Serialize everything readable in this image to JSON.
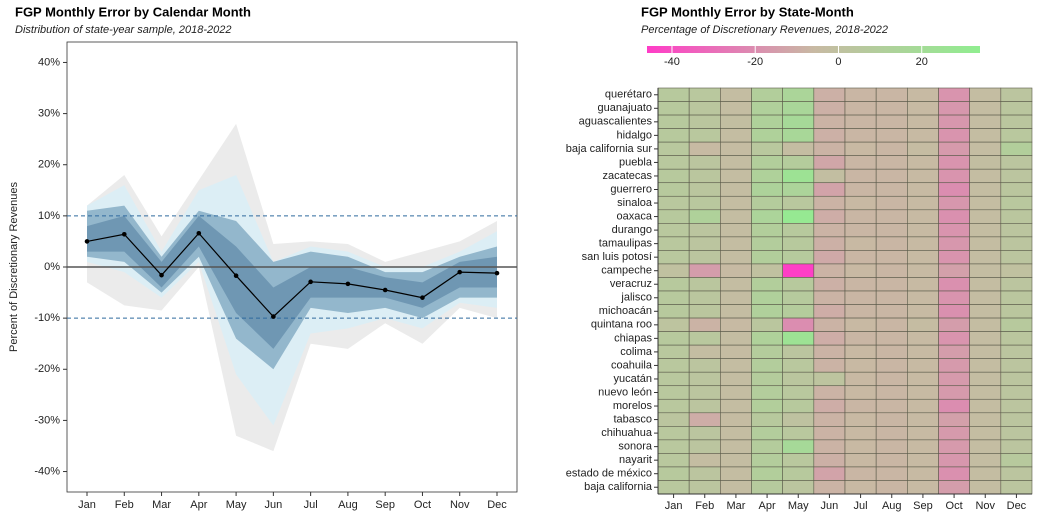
{
  "chart_data": [
    {
      "type": "line",
      "title": "FGP Monthly Error by Calendar Month",
      "subtitle": "Distribution of state-year sample, 2018-2022",
      "y_label": "Percent of Discretionary Revenues",
      "categories": [
        "Jan",
        "Feb",
        "Mar",
        "Apr",
        "May",
        "Jun",
        "Jul",
        "Aug",
        "Sep",
        "Oct",
        "Nov",
        "Dec"
      ],
      "series": [
        {
          "color": "#000000",
          "values": [
            5.0,
            6.4,
            -1.6,
            6.6,
            -1.7,
            -9.7,
            -2.9,
            -3.3,
            -4.5,
            -6.0,
            -1.0,
            -1.2
          ]
        }
      ],
      "bands": [
        {
          "color": "#ebebeb",
          "lower": [
            -3,
            -7.5,
            -8.5,
            0,
            -33,
            -36,
            -15,
            -16,
            -11,
            -15,
            -8,
            -10
          ],
          "upper": [
            12,
            18,
            6,
            17,
            28,
            4.5,
            5,
            4.5,
            1,
            3,
            5,
            9
          ]
        },
        {
          "color": "#dceef5",
          "lower": [
            1,
            -1,
            -6,
            1,
            -21,
            -31,
            -13,
            -12,
            -10,
            -12,
            -7,
            -8
          ],
          "upper": [
            12,
            16,
            3,
            15,
            18,
            1,
            4,
            3,
            0,
            0,
            3,
            7
          ]
        },
        {
          "color": "#93b7cc",
          "lower": [
            2,
            1,
            -5,
            2,
            -14,
            -20,
            -8,
            -9,
            -8,
            -10,
            -6,
            -6
          ],
          "upper": [
            11,
            12,
            2,
            11,
            9,
            1,
            3,
            2,
            -1,
            -1,
            2,
            4
          ]
        },
        {
          "color": "#6f97b3",
          "lower": [
            3,
            3,
            -4,
            4,
            -9,
            -16,
            -6,
            -6,
            -6,
            -8,
            -4,
            -4
          ],
          "upper": [
            8,
            10,
            1,
            10,
            4,
            -4,
            0,
            0,
            -2,
            -3,
            1,
            2
          ]
        }
      ],
      "reference_lines": [
        {
          "value": 10,
          "style": "dashed",
          "color": "#2f6a9e"
        },
        {
          "value": -10,
          "style": "dashed",
          "color": "#2f6a9e"
        },
        {
          "value": 0,
          "style": "solid",
          "color": "#555555"
        }
      ],
      "ylim": [
        -44,
        44
      ],
      "yticks": [
        {
          "value": -40,
          "label": "-40%"
        },
        {
          "value": -30,
          "label": "-30%"
        },
        {
          "value": -20,
          "label": "-20%"
        },
        {
          "value": -10,
          "label": "-10%"
        },
        {
          "value": 0,
          "label": "0%"
        },
        {
          "value": 10,
          "label": "10%"
        },
        {
          "value": 20,
          "label": "20%"
        },
        {
          "value": 30,
          "label": "30%"
        },
        {
          "value": 40,
          "label": "40%"
        }
      ],
      "grid": false
    },
    {
      "type": "heatmap",
      "title": "FGP Monthly Error by State-Month",
      "colorbar_title": "Percentage of Discretionary Revenues, 2018-2022",
      "x_categories": [
        "Jan",
        "Feb",
        "Mar",
        "Apr",
        "May",
        "Jun",
        "Jul",
        "Aug",
        "Sep",
        "Oct",
        "Nov",
        "Dec"
      ],
      "y_categories": [
        "querétaro",
        "guanajuato",
        "aguascalientes",
        "hidalgo",
        "baja california sur",
        "puebla",
        "zacatecas",
        "guerrero",
        "sinaloa",
        "oaxaca",
        "durango",
        "tamaulipas",
        "san luis potosí",
        "campeche",
        "veracruz",
        "jalisco",
        "michoacán",
        "quintana roo",
        "chiapas",
        "colima",
        "coahuila",
        "yucatán",
        "nuevo león",
        "morelos",
        "tabasco",
        "chihuahua",
        "sonora",
        "nayarit",
        "estado de méxico",
        "baja california"
      ],
      "values": [
        [
          6,
          5,
          -3,
          10,
          15,
          -9,
          -7,
          -7,
          -5,
          -18,
          -3,
          3
        ],
        [
          6,
          4,
          -3,
          11,
          16,
          -9,
          -7,
          -7,
          -5,
          -17,
          -3,
          4
        ],
        [
          6,
          4,
          -2,
          12,
          18,
          -8,
          -7,
          -7,
          -5,
          -17,
          -3,
          4
        ],
        [
          6,
          5,
          -3,
          12,
          17,
          -9,
          -7,
          -7,
          -5,
          -18,
          -3,
          5
        ],
        [
          5,
          -5,
          -4,
          5,
          -3,
          -8,
          -6,
          -7,
          -4,
          -16,
          -3,
          10
        ],
        [
          5,
          3,
          -3,
          10,
          8,
          -12,
          -7,
          -7,
          -5,
          -18,
          -2,
          3
        ],
        [
          6,
          4,
          -3,
          12,
          25,
          -2,
          -7,
          -7,
          -5,
          -18,
          -3,
          3
        ],
        [
          6,
          4,
          -3,
          13,
          14,
          -13,
          -7,
          -7,
          -5,
          -20,
          -3,
          4
        ],
        [
          5,
          5,
          -3,
          8,
          5,
          -8,
          -6,
          -7,
          -5,
          -17,
          -3,
          5
        ],
        [
          6,
          12,
          -3,
          14,
          30,
          -10,
          -7,
          -7,
          -5,
          -19,
          -3,
          4
        ],
        [
          5,
          3,
          -3,
          10,
          6,
          -8,
          -7,
          -7,
          -5,
          -18,
          -3,
          3
        ],
        [
          5,
          3,
          -3,
          9,
          6,
          -9,
          -6,
          -7,
          -5,
          -17,
          -3,
          3
        ],
        [
          5,
          3,
          -3,
          10,
          7,
          -11,
          -7,
          -7,
          -5,
          -18,
          -3,
          3
        ],
        [
          0,
          -15,
          -5,
          0,
          -45,
          -8,
          -6,
          -7,
          -5,
          -14,
          -3,
          0
        ],
        [
          6,
          4,
          -3,
          10,
          6,
          -9,
          -7,
          -7,
          -5,
          -19,
          -3,
          3
        ],
        [
          6,
          4,
          -3,
          11,
          7,
          -8,
          -7,
          -7,
          -5,
          -18,
          -3,
          4
        ],
        [
          6,
          4,
          -3,
          11,
          8,
          -10,
          -7,
          -7,
          -5,
          -19,
          -3,
          4
        ],
        [
          2,
          -8,
          -5,
          4,
          -20,
          -8,
          -6,
          -7,
          -4,
          -15,
          -3,
          6
        ],
        [
          6,
          5,
          -3,
          12,
          25,
          -10,
          -7,
          -7,
          -5,
          -18,
          -3,
          4
        ],
        [
          5,
          -3,
          -4,
          8,
          3,
          -8,
          -6,
          -7,
          -5,
          -15,
          -3,
          3
        ],
        [
          5,
          3,
          -3,
          9,
          5,
          -8,
          -6,
          -7,
          -5,
          -16,
          -3,
          3
        ],
        [
          5,
          3,
          -3,
          8,
          4,
          2,
          -6,
          -7,
          -5,
          -16,
          -3,
          3
        ],
        [
          5,
          3,
          -3,
          9,
          5,
          -8,
          -6,
          -7,
          -5,
          -16,
          -3,
          3
        ],
        [
          5,
          3,
          -3,
          10,
          6,
          -10,
          -7,
          -7,
          -5,
          -20,
          -3,
          3
        ],
        [
          3,
          -10,
          -4,
          6,
          1,
          -8,
          -6,
          -7,
          -5,
          -14,
          -3,
          3
        ],
        [
          5,
          3,
          -3,
          9,
          5,
          -8,
          -6,
          -7,
          -5,
          -16,
          -3,
          3
        ],
        [
          5,
          3,
          -3,
          8,
          18,
          -8,
          -6,
          -7,
          -5,
          -16,
          -3,
          3
        ],
        [
          5,
          -3,
          -3,
          9,
          5,
          -9,
          -6,
          -7,
          -5,
          -17,
          -3,
          6
        ],
        [
          6,
          3,
          -3,
          10,
          6,
          -13,
          -7,
          -7,
          -5,
          -19,
          -3,
          3
        ],
        [
          5,
          3,
          -3,
          7,
          3,
          -8,
          -6,
          -7,
          -5,
          -15,
          -3,
          3
        ]
      ],
      "clim": [
        -46,
        34
      ],
      "colors": [
        "#ff3cc7",
        "#c8b9a3",
        "#90ee90"
      ],
      "colorbar_ticks": [
        -40,
        -20,
        0,
        20
      ]
    }
  ]
}
